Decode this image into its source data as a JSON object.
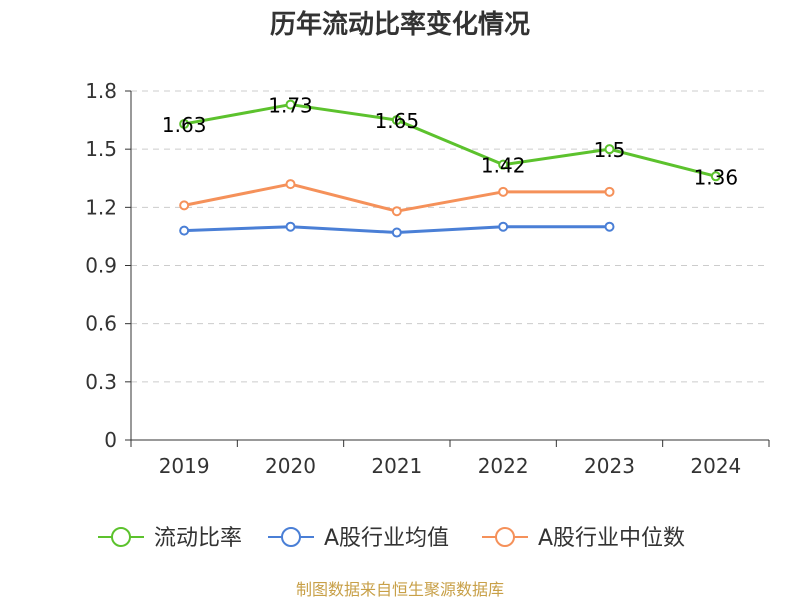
{
  "chart_data": {
    "type": "line",
    "title": "历年流动比率变化情况",
    "xlabel": "",
    "ylabel": "",
    "categories": [
      "2019",
      "2020",
      "2021",
      "2022",
      "2023",
      "2024"
    ],
    "ylim": [
      0,
      1.8
    ],
    "yticks": [
      "0",
      "0.3",
      "0.6",
      "0.9",
      "1.2",
      "1.5",
      "1.8"
    ],
    "grid": true,
    "legend_position": "bottom",
    "series": [
      {
        "name": "流动比率",
        "color": "#5cc22d",
        "values": [
          1.63,
          1.73,
          1.65,
          1.42,
          1.5,
          1.36
        ],
        "labels": [
          "1.63",
          "1.73",
          "1.65",
          "1.42",
          "1.5",
          "1.36"
        ]
      },
      {
        "name": "A股行业均值",
        "color": "#4a7fd6",
        "values": [
          1.08,
          1.1,
          1.07,
          1.1,
          1.1,
          null
        ]
      },
      {
        "name": "A股行业中位数",
        "color": "#f5915a",
        "values": [
          1.21,
          1.32,
          1.18,
          1.28,
          1.28,
          null
        ]
      }
    ]
  },
  "source": "制图数据来自恒生聚源数据库",
  "colors": {
    "axis": "#333333",
    "grid": "#cccccc",
    "source": "#c8a048"
  }
}
